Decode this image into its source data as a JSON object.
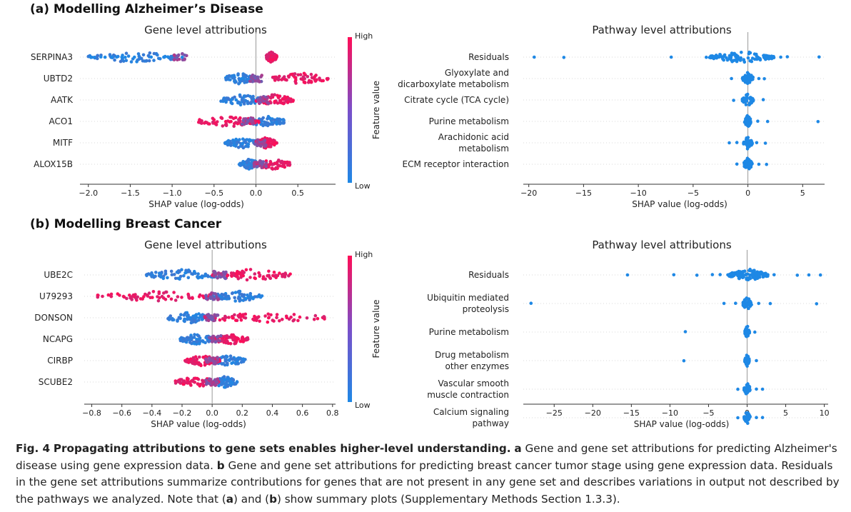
{
  "panels": [
    {
      "label": "(a) Modelling Alzheimer’s Disease"
    },
    {
      "label": "(b) Modelling Breast Cancer"
    }
  ],
  "caption": {
    "fig": "Fig. 4",
    "headline": "Propagating attributions to gene sets enables higher-level understanding.",
    "a_mark": "a",
    "a_text": "Gene and gene set attributions for predicting Alzheimer's disease using gene expression data.",
    "b_mark": "b",
    "b_text": "Gene and gene set attributions for predicting breast cancer tumor stage using gene expression data. Residuals in the gene set attributions summarize contributions for genes that are not present in any gene set and describes variations in output not described by the pathways we analyzed. Note that (",
    "a_ref": "a",
    "and": ") and (",
    "b_ref": "b",
    "tail": ") show summary plots (Supplementary Methods Section 1.3.3)."
  },
  "colors": {
    "low": "#1e88e5",
    "high": "#ff0d57"
  },
  "chart_data": [
    {
      "type": "scatter",
      "subtype": "shap_beeswarm",
      "title": "Gene level attributions",
      "xlabel": "SHAP value (log-odds)",
      "colorbar": {
        "label": "Feature value",
        "high": "High",
        "low": "Low"
      },
      "xlim": [
        -2.1,
        0.95
      ],
      "xticks": [
        -2.0,
        -1.5,
        -1.0,
        -0.5,
        0.0,
        0.5
      ],
      "xticklabels": [
        "−2.0",
        "−1.5",
        "−1.0",
        "−0.5",
        "0.0",
        "0.5"
      ],
      "colored": true,
      "features": [
        {
          "name": "SERPINA3",
          "low_range": [
            -2.0,
            -0.9
          ],
          "low_outliers": [
            -1.97,
            -1.93,
            -1.85,
            -1.8,
            -1.72,
            -1.66,
            -1.6,
            -1.56,
            -1.45,
            -1.25,
            -1.1,
            -1.05,
            -0.88
          ],
          "high_range": [
            0.12,
            0.25
          ],
          "mix": "split_high_right"
        },
        {
          "name": "UBTD2",
          "low_range": [
            -0.38,
            0.0
          ],
          "high_range": [
            0.2,
            0.88
          ],
          "mix": "split_high_right"
        },
        {
          "name": "AATK",
          "low_range": [
            -0.42,
            0.1
          ],
          "high_range": [
            0.0,
            0.45
          ],
          "mix": "split_high_right"
        },
        {
          "name": "ACO1",
          "low_range": [
            -0.1,
            0.35
          ],
          "high_range": [
            -0.7,
            0.05
          ],
          "mix": "split_high_left"
        },
        {
          "name": "MITF",
          "low_range": [
            -0.38,
            0.05
          ],
          "high_range": [
            0.0,
            0.25
          ],
          "mix": "split_high_right"
        },
        {
          "name": "ALOX15B",
          "low_range": [
            -0.2,
            0.05
          ],
          "high_range": [
            0.0,
            0.42
          ],
          "mix": "split_high_right"
        }
      ]
    },
    {
      "type": "scatter",
      "subtype": "shap_beeswarm",
      "title": "Pathway level attributions",
      "xlabel": "SHAP value (log-odds)",
      "xlim": [
        -20.5,
        7.0
      ],
      "xticks": [
        -20,
        -15,
        -10,
        -5,
        0,
        5
      ],
      "xticklabels": [
        "−20",
        "−15",
        "−10",
        "−5",
        "0",
        "5"
      ],
      "colored": false,
      "features": [
        {
          "name": "Residuals",
          "lines": [
            "Residuals"
          ],
          "core": [
            -3.5,
            2.5
          ],
          "outliers": [
            -19.5,
            -16.8,
            -7.0,
            -3.8,
            3.0,
            3.6,
            6.5
          ]
        },
        {
          "name": "Glyoxylate and dicarboxylate metabolism",
          "lines": [
            "Glyoxylate and",
            "dicarboxylate metabolism"
          ],
          "core": [
            -0.5,
            0.5
          ],
          "outliers": [
            -1.5,
            1.0,
            1.5
          ]
        },
        {
          "name": "Citrate cycle (TCA cycle)",
          "lines": [
            "Citrate cycle (TCA cycle)"
          ],
          "core": [
            -0.5,
            0.5
          ],
          "outliers": [
            -1.3,
            1.4
          ]
        },
        {
          "name": "Purine metabolism",
          "lines": [
            "Purine metabolism"
          ],
          "core": [
            -0.3,
            0.3
          ],
          "outliers": [
            0.9,
            1.8,
            6.4
          ]
        },
        {
          "name": "Arachidonic acid metabolism",
          "lines": [
            "Arachidonic acid",
            "metabolism"
          ],
          "core": [
            -0.4,
            0.4
          ],
          "outliers": [
            -1.7,
            -1.0,
            0.8,
            1.6
          ]
        },
        {
          "name": "ECM receptor interaction",
          "lines": [
            "ECM receptor interaction"
          ],
          "core": [
            -0.4,
            0.4
          ],
          "outliers": [
            -1.0,
            1.0,
            1.7
          ]
        }
      ]
    },
    {
      "type": "scatter",
      "subtype": "shap_beeswarm",
      "title": "Gene level attributions",
      "xlabel": "SHAP value (log-odds)",
      "colorbar": {
        "label": "Feature value",
        "high": "High",
        "low": "Low"
      },
      "xlim": [
        -0.85,
        0.82
      ],
      "xticks": [
        -0.8,
        -0.6,
        -0.4,
        -0.2,
        0.0,
        0.2,
        0.4,
        0.6,
        0.8
      ],
      "xticklabels": [
        "−0.8",
        "−0.6",
        "−0.4",
        "−0.2",
        "0.0",
        "0.2",
        "0.4",
        "0.6",
        "0.8"
      ],
      "colored": true,
      "features": [
        {
          "name": "UBE2C",
          "low_range": [
            -0.45,
            0.05
          ],
          "high_range": [
            0.0,
            0.52
          ],
          "mix": "split_high_right"
        },
        {
          "name": "U79293",
          "low_range": [
            0.0,
            0.34
          ],
          "high_range": [
            -0.8,
            0.0
          ],
          "mix": "split_high_left"
        },
        {
          "name": "DONSON",
          "low_range": [
            -0.3,
            0.0
          ],
          "high_range": [
            -0.05,
            0.75
          ],
          "mix": "split_high_right"
        },
        {
          "name": "NCAPG",
          "low_range": [
            -0.22,
            0.02
          ],
          "high_range": [
            0.0,
            0.24
          ],
          "mix": "split_high_right"
        },
        {
          "name": "CIRBP",
          "low_range": [
            0.0,
            0.22
          ],
          "high_range": [
            -0.18,
            0.05
          ],
          "mix": "split_high_left"
        },
        {
          "name": "SCUBE2",
          "low_range": [
            0.0,
            0.17
          ],
          "high_range": [
            -0.25,
            0.05
          ],
          "mix": "split_high_left"
        }
      ]
    },
    {
      "type": "scatter",
      "subtype": "shap_beeswarm",
      "title": "Pathway level attributions",
      "xlabel": "SHAP value (log-odds)",
      "xlim": [
        -29.0,
        10.5
      ],
      "xticks": [
        -25,
        -20,
        -15,
        -10,
        -5,
        0,
        5,
        10
      ],
      "xticklabels": [
        "−25",
        "−20",
        "−15",
        "−10",
        "−5",
        "0",
        "5",
        "10"
      ],
      "colored": false,
      "features": [
        {
          "name": "Residuals",
          "lines": [
            "Residuals"
          ],
          "core": [
            -2.5,
            2.8
          ],
          "outliers": [
            -15.5,
            -9.5,
            -6.5,
            -4.5,
            -3.5,
            3.5,
            6.5,
            8.0,
            9.5
          ]
        },
        {
          "name": "Ubiquitin mediated proteolysis",
          "lines": [
            "Ubiquitin mediated",
            "proteolysis"
          ],
          "core": [
            -0.6,
            0.6
          ],
          "outliers": [
            -28.0,
            -3.0,
            -1.5,
            1.5,
            3.0,
            9.0
          ]
        },
        {
          "name": "Purine metabolism",
          "lines": [
            "Purine metabolism"
          ],
          "core": [
            -0.3,
            0.3
          ],
          "outliers": [
            -8.0,
            1.0
          ]
        },
        {
          "name": "Drug metabolism other enzymes",
          "lines": [
            "Drug metabolism",
            "other enzymes"
          ],
          "core": [
            -0.3,
            0.3
          ],
          "outliers": [
            -8.2,
            1.2
          ]
        },
        {
          "name": "Vascular smooth muscle contraction",
          "lines": [
            "Vascular smooth",
            "muscle contraction"
          ],
          "core": [
            -0.4,
            0.4
          ],
          "outliers": [
            -1.2,
            1.2,
            2.0
          ]
        },
        {
          "name": "Calcium signaling pathway",
          "lines": [
            "Calcium signaling",
            "pathway"
          ],
          "core": [
            -0.4,
            0.4
          ],
          "outliers": [
            -1.2,
            1.2,
            2.0
          ]
        }
      ]
    }
  ]
}
